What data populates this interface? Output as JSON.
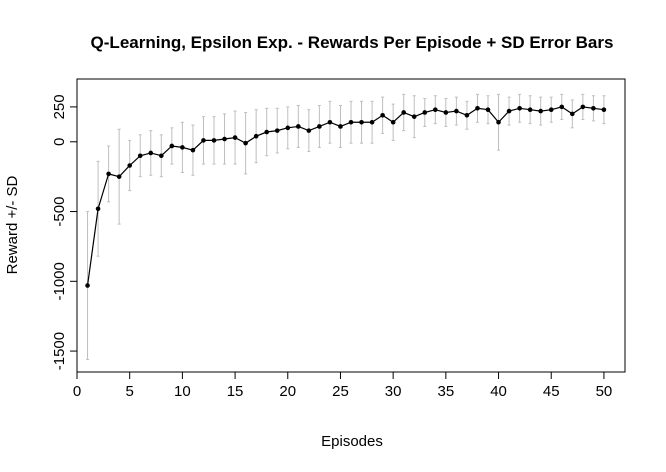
{
  "chart_data": {
    "type": "line",
    "title": "Q-Learning, Epsilon Exp. - Rewards Per Episode + SD Error Bars",
    "xlabel": "Episodes",
    "ylabel": "Reward +/- SD",
    "xlim": [
      0,
      52
    ],
    "ylim": [
      -1650,
      450
    ],
    "x_ticks": [
      0,
      5,
      10,
      15,
      20,
      25,
      30,
      35,
      40,
      45,
      50
    ],
    "y_ticks": [
      -1500,
      -1000,
      -500,
      0,
      250
    ],
    "x": [
      1,
      2,
      3,
      4,
      5,
      6,
      7,
      8,
      9,
      10,
      11,
      12,
      13,
      14,
      15,
      16,
      17,
      18,
      19,
      20,
      21,
      22,
      23,
      24,
      25,
      26,
      27,
      28,
      29,
      30,
      31,
      32,
      33,
      34,
      35,
      36,
      37,
      38,
      39,
      40,
      41,
      42,
      43,
      44,
      45,
      46,
      47,
      48,
      49,
      50
    ],
    "series": [
      {
        "values": [
          -1030,
          -480,
          -230,
          -250,
          -170,
          -100,
          -80,
          -100,
          -30,
          -40,
          -60,
          10,
          10,
          20,
          30,
          -10,
          40,
          70,
          80,
          100,
          110,
          80,
          110,
          140,
          110,
          140,
          140,
          140,
          190,
          140,
          210,
          180,
          210,
          230,
          210,
          220,
          190,
          240,
          230,
          140,
          220,
          240,
          230,
          220,
          230,
          250,
          200,
          250,
          240,
          230
        ],
        "sd": [
          530,
          340,
          200,
          340,
          180,
          150,
          160,
          150,
          130,
          180,
          180,
          170,
          170,
          180,
          190,
          220,
          190,
          170,
          160,
          150,
          150,
          150,
          150,
          150,
          150,
          150,
          150,
          150,
          130,
          130,
          130,
          150,
          100,
          100,
          100,
          100,
          100,
          100,
          100,
          200,
          100,
          100,
          100,
          100,
          90,
          90,
          100,
          90,
          90,
          100
        ]
      }
    ],
    "grid": false,
    "legend": "none",
    "colors": {
      "line": "#000000",
      "error_bar": "#bebebe"
    }
  }
}
